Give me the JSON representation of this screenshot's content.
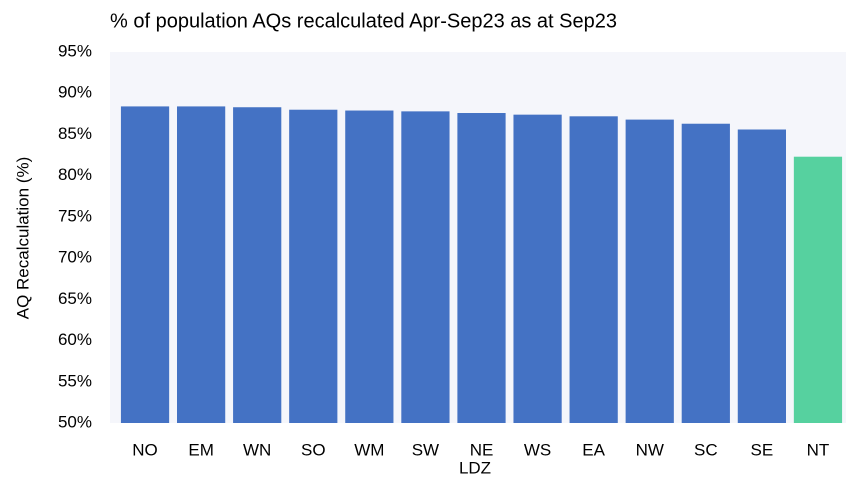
{
  "chart_data": {
    "type": "bar",
    "title": "% of population AQs recalculated Apr-Sep23 as at Sep23",
    "x_label": "LDZ",
    "y_label": "AQ Recalculation (%)",
    "categories": [
      "NO",
      "EM",
      "WN",
      "SO",
      "WM",
      "SW",
      "NE",
      "WS",
      "EA",
      "NW",
      "SC",
      "SE",
      "NT"
    ],
    "values": [
      88.4,
      88.4,
      88.3,
      88.0,
      87.9,
      87.8,
      87.6,
      87.4,
      87.2,
      86.8,
      86.3,
      85.6,
      82.3
    ],
    "colors": [
      "#4472c4",
      "#4472c4",
      "#4472c4",
      "#4472c4",
      "#4472c4",
      "#4472c4",
      "#4472c4",
      "#4472c4",
      "#4472c4",
      "#4472c4",
      "#4472c4",
      "#4472c4",
      "#56d19f"
    ],
    "ylim": [
      50,
      95
    ],
    "yticks": [
      {
        "value": 50,
        "label": "50%"
      },
      {
        "value": 55,
        "label": "55%"
      },
      {
        "value": 60,
        "label": "60%"
      },
      {
        "value": 65,
        "label": "65%"
      },
      {
        "value": 70,
        "label": "70%"
      },
      {
        "value": 75,
        "label": "75%"
      },
      {
        "value": 80,
        "label": "80%"
      },
      {
        "value": 85,
        "label": "85%"
      },
      {
        "value": 90,
        "label": "90%"
      },
      {
        "value": 95,
        "label": "95%"
      }
    ],
    "grid": false
  }
}
